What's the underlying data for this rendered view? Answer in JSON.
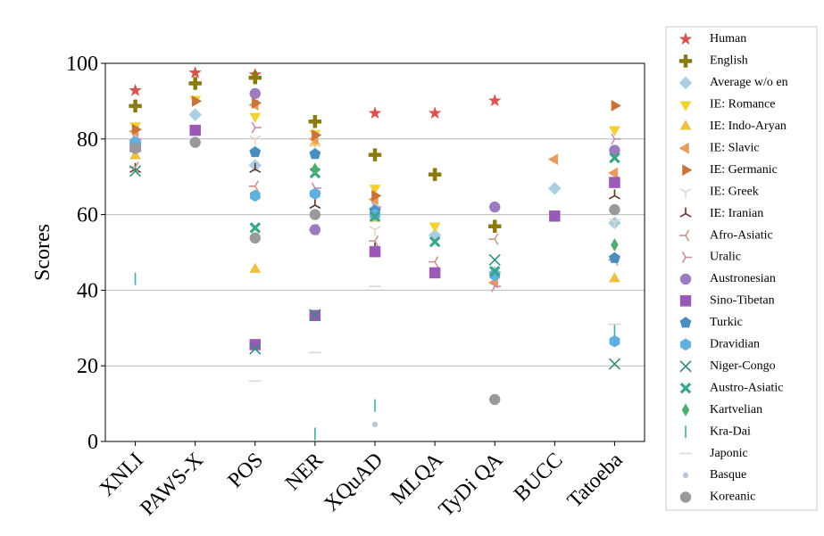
{
  "chart_data": {
    "type": "scatter",
    "ylabel": "Scores",
    "categories": [
      "XNLI",
      "PAWS-X",
      "POS",
      "NER",
      "XQuAD",
      "MLQA",
      "TyDi QA",
      "BUCC",
      "Tatoeba"
    ],
    "ylim": [
      0,
      100
    ],
    "yticks": [
      0,
      20,
      40,
      60,
      80,
      100
    ],
    "grid": true,
    "series": [
      {
        "name": "Human",
        "color": "#d9534f",
        "marker": "star",
        "values": [
          92.8,
          97.5,
          97,
          null,
          86.8,
          86.8,
          90.1,
          null,
          null
        ]
      },
      {
        "name": "English",
        "color": "#8a7a10",
        "marker": "plus",
        "values": [
          88.7,
          94.7,
          96.2,
          84.6,
          75.8,
          70.6,
          56.9,
          null,
          null
        ]
      },
      {
        "name": "Average w/o en",
        "color": "#a9cfe2",
        "marker": "diamond",
        "values": [
          79.6,
          86.4,
          73,
          65.6,
          61.5,
          54.5,
          44.7,
          66.9,
          57.8
        ]
      },
      {
        "name": "IE: Romance",
        "color": "#f2d230",
        "marker": "tri_down",
        "values": [
          83.5,
          90.5,
          86,
          81.5,
          67,
          57,
          null,
          null,
          82.5
        ]
      },
      {
        "name": "IE: Indo-Aryan",
        "color": "#efc040",
        "marker": "tri_up",
        "values": [
          75.5,
          null,
          45.5,
          79,
          59,
          null,
          null,
          null,
          43
        ]
      },
      {
        "name": "IE: Slavic",
        "color": "#e89b5a",
        "marker": "tri_left",
        "values": [
          82,
          null,
          89,
          80,
          64,
          null,
          42,
          74.6,
          71
        ]
      },
      {
        "name": "IE: Germanic",
        "color": "#c8733a",
        "marker": "tri_right",
        "values": [
          82.5,
          90,
          89.5,
          81,
          65,
          null,
          null,
          null,
          88.8
        ]
      },
      {
        "name": "IE: Greek",
        "color": "#e6d6c8",
        "marker": "y_down",
        "values": [
          78,
          null,
          80,
          78,
          56,
          null,
          null,
          null,
          58
        ]
      },
      {
        "name": "IE: Iranian",
        "color": "#5e3526",
        "marker": "y_up",
        "values": [
          72,
          null,
          72,
          62.5,
          51,
          null,
          null,
          null,
          65
        ]
      },
      {
        "name": "Afro-Asiatic",
        "color": "#c9988a",
        "marker": "y_left",
        "values": [
          72.5,
          null,
          67.5,
          56,
          53,
          47.5,
          53.5,
          null,
          48
        ]
      },
      {
        "name": "Uralic",
        "color": "#c88cb4",
        "marker": "y_right",
        "values": [
          80,
          null,
          83,
          67,
          62,
          null,
          41,
          null,
          80
        ]
      },
      {
        "name": "Austronesian",
        "color": "#9c7bbf",
        "marker": "circle",
        "values": [
          79,
          null,
          92,
          56,
          null,
          null,
          62,
          null,
          77
        ]
      },
      {
        "name": "Sino-Tibetan",
        "color": "#9b59b6",
        "marker": "square",
        "values": [
          78,
          82.3,
          25.6,
          33.3,
          50.2,
          44.6,
          null,
          59.6,
          68.5
        ]
      },
      {
        "name": "Turkic",
        "color": "#4a8ec0",
        "marker": "pentagon",
        "values": [
          78.5,
          null,
          76.5,
          76,
          61,
          null,
          null,
          null,
          48.5
        ]
      },
      {
        "name": "Dravidian",
        "color": "#5fb0df",
        "marker": "hexagon",
        "values": [
          79,
          null,
          65,
          65.5,
          60,
          null,
          44,
          null,
          26.5
        ]
      },
      {
        "name": "Niger-Congo",
        "color": "#2f8f7f",
        "marker": "x",
        "values": [
          71.5,
          null,
          24.5,
          33.5,
          null,
          null,
          48,
          null,
          20.5
        ]
      },
      {
        "name": "Austro-Asiatic",
        "color": "#3aa58a",
        "marker": "xfill",
        "values": [
          null,
          null,
          56.5,
          71,
          59.5,
          52.8,
          45,
          null,
          75
        ]
      },
      {
        "name": "Kartvelian",
        "color": "#4caf6e",
        "marker": "thin_diamond",
        "values": [
          null,
          null,
          null,
          72,
          null,
          null,
          null,
          null,
          52
        ]
      },
      {
        "name": "Kra-Dai",
        "color": "#3fb0a0",
        "marker": "vline",
        "values": [
          43,
          null,
          null,
          2,
          9.5,
          null,
          null,
          null,
          29.5
        ]
      },
      {
        "name": "Japonic",
        "color": "#d8d8d8",
        "marker": "hline",
        "values": [
          null,
          null,
          16,
          23.5,
          41,
          null,
          null,
          null,
          31
        ]
      },
      {
        "name": "Basque",
        "color": "#bcc6d4",
        "marker": "point",
        "values": [
          null,
          null,
          null,
          null,
          4.5,
          null,
          null,
          null,
          null
        ]
      },
      {
        "name": "Koreanic",
        "color": "#999999",
        "marker": "circle",
        "values": [
          77.5,
          79.1,
          53.8,
          60,
          null,
          null,
          11.1,
          null,
          61.3
        ]
      }
    ]
  }
}
